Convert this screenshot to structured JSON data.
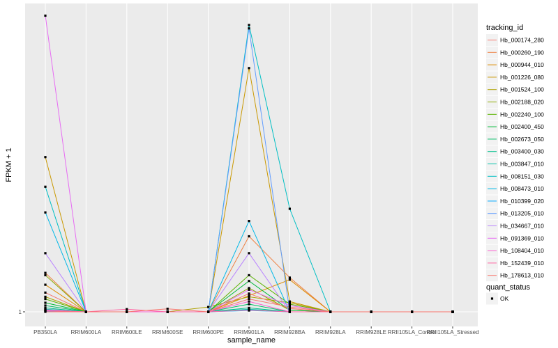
{
  "chart_data": {
    "type": "line",
    "xlabel": "sample_name",
    "ylabel": "FPKM + 1",
    "y_ticks": [
      "1"
    ],
    "y_scale": "log",
    "grid": true,
    "legend_position": "right",
    "categories": [
      "PB350LA",
      "RRIM600LA",
      "RRIM600LE",
      "RRIM600SE",
      "RRIM600PE",
      "RRIM901LA",
      "RRIM928BA",
      "RRIM928LA",
      "RRIM928LE",
      "RRII105LA_Control",
      "RRII105LA_Stressed"
    ],
    "series_legend_title": "tracking_id",
    "status_legend_title": "quant_status",
    "status_legend_items": [
      "OK"
    ],
    "series": [
      {
        "name": "Hb_000174_280",
        "color": "#F8766D",
        "values": [
          1.75,
          1.0,
          1.0,
          1.0,
          1.0,
          1.45,
          1.15,
          1.0,
          1.0,
          1.0,
          1.0
        ]
      },
      {
        "name": "Hb_000260_190",
        "color": "#EE8042",
        "values": [
          3.1,
          1.0,
          1.0,
          1.0,
          1.0,
          9.0,
          2.7,
          1.0,
          1.0,
          1.0,
          1.0
        ]
      },
      {
        "name": "Hb_000944_010",
        "color": "#DE8C00",
        "values": [
          2.2,
          1.0,
          1.0,
          1.0,
          1.0,
          1.6,
          2.55,
          1.0,
          1.0,
          1.0,
          1.0
        ]
      },
      {
        "name": "Hb_001226_080",
        "color": "#C99800",
        "values": [
          90.0,
          1.0,
          1.0,
          1.0,
          1.0,
          1200.0,
          1.35,
          1.0,
          1.0,
          1.0,
          1.0
        ]
      },
      {
        "name": "Hb_001524_100",
        "color": "#AEA200",
        "values": [
          1.55,
          1.0,
          1.0,
          1.0,
          1.15,
          1.55,
          1.3,
          1.0,
          1.0,
          1.0,
          1.0
        ]
      },
      {
        "name": "Hb_002188_020",
        "color": "#8CAB00",
        "values": [
          2.9,
          1.0,
          1.0,
          1.0,
          1.0,
          2.0,
          1.05,
          1.0,
          1.0,
          1.0,
          1.0
        ]
      },
      {
        "name": "Hb_002240_100",
        "color": "#5BB300",
        "values": [
          1.45,
          1.0,
          1.0,
          1.0,
          1.0,
          2.9,
          1.25,
          1.0,
          1.0,
          1.0,
          1.0
        ]
      },
      {
        "name": "Hb_002400_450",
        "color": "#00BA38",
        "values": [
          1.3,
          1.0,
          1.0,
          1.0,
          1.0,
          2.45,
          1.05,
          1.0,
          1.0,
          1.0,
          1.0
        ]
      },
      {
        "name": "Hb_002673_050",
        "color": "#00BE67",
        "values": [
          1.2,
          1.0,
          1.0,
          1.0,
          1.0,
          1.25,
          1.0,
          1.0,
          1.0,
          1.0,
          1.0
        ]
      },
      {
        "name": "Hb_003400_030",
        "color": "#00C08B",
        "values": [
          1.12,
          1.0,
          1.0,
          1.0,
          1.0,
          1.12,
          1.0,
          1.0,
          1.0,
          1.0,
          1.0
        ]
      },
      {
        "name": "Hb_003847_010",
        "color": "#00C1A9",
        "values": [
          1.08,
          1.0,
          1.0,
          1.0,
          1.0,
          1.08,
          1.0,
          1.0,
          1.0,
          1.0,
          1.0
        ]
      },
      {
        "name": "Hb_008151_030",
        "color": "#00BFC4",
        "values": [
          38.0,
          1.0,
          1.0,
          1.0,
          1.0,
          4200.0,
          20.0,
          1.0,
          1.0,
          1.0,
          1.0
        ]
      },
      {
        "name": "Hb_008473_010",
        "color": "#00B8E7",
        "values": [
          18.0,
          1.0,
          1.0,
          1.0,
          1.0,
          14.0,
          1.0,
          1.0,
          1.0,
          1.0,
          1.0
        ]
      },
      {
        "name": "Hb_010399_020",
        "color": "#00A9FF",
        "values": [
          1.04,
          1.0,
          1.0,
          1.0,
          1.0,
          1.04,
          1.0,
          1.0,
          1.0,
          1.0,
          1.0
        ]
      },
      {
        "name": "Hb_013205_010",
        "color": "#619CFF",
        "values": [
          1.02,
          1.0,
          1.0,
          1.0,
          1.0,
          3800.0,
          1.0,
          1.0,
          1.0,
          1.0,
          1.0
        ]
      },
      {
        "name": "Hb_034667_010",
        "color": "#B983FF",
        "values": [
          5.5,
          1.0,
          1.0,
          1.0,
          1.0,
          5.5,
          1.0,
          1.0,
          1.0,
          1.0,
          1.0
        ]
      },
      {
        "name": "Hb_091369_010",
        "color": "#E76BF3",
        "values": [
          5500.0,
          1.0,
          1.0,
          1.0,
          1.0,
          1.9,
          1.2,
          1.0,
          1.0,
          1.0,
          1.0
        ]
      },
      {
        "name": "Hb_108404_010",
        "color": "#FD61D1",
        "values": [
          1.06,
          1.0,
          1.0,
          1.0,
          1.0,
          1.35,
          1.0,
          1.0,
          1.0,
          1.0,
          1.0
        ]
      },
      {
        "name": "Hb_152439_010",
        "color": "#FF67A4",
        "values": [
          1.03,
          1.0,
          1.08,
          1.0,
          1.0,
          1.05,
          1.0,
          1.0,
          1.0,
          1.0,
          1.0
        ]
      },
      {
        "name": "Hb_178613_010",
        "color": "#F8766D",
        "values": [
          1.0,
          1.0,
          1.0,
          1.09,
          1.0,
          1.7,
          1.1,
          1.0,
          1.0,
          1.0,
          1.0
        ]
      }
    ]
  }
}
